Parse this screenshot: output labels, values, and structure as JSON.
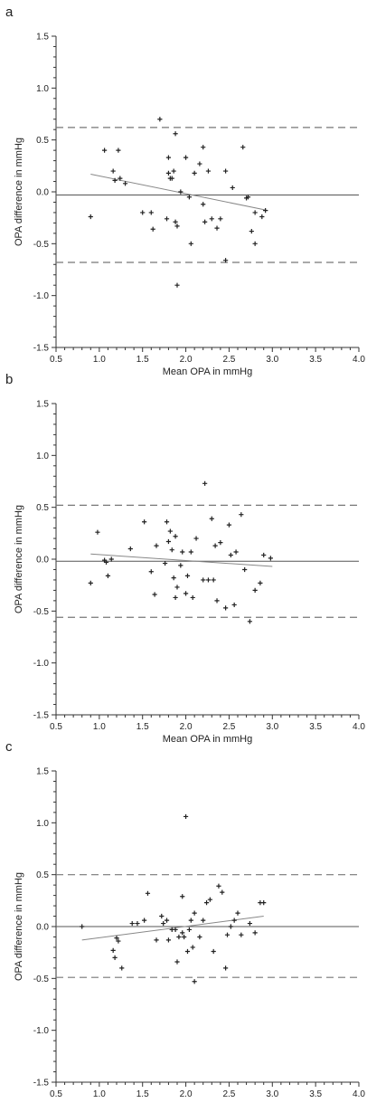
{
  "figure": {
    "colors": {
      "axis": "#333333",
      "points": "#222222",
      "mean_line": "#555555",
      "limit_line": "#777777",
      "regression": "#888888"
    }
  },
  "chart_data": [
    {
      "type": "scatter",
      "panel": "a",
      "xlabel": "Mean OPA in mmHg",
      "ylabel": "OPA difference in mmHg",
      "xlim": [
        0.5,
        4.0
      ],
      "ylim": [
        -1.5,
        1.5
      ],
      "xticks": [
        "0.5",
        "1.0",
        "1.5",
        "2.0",
        "2.5",
        "3.0",
        "3.5",
        "4.0"
      ],
      "yticks": [
        "1.5",
        "1.0",
        "0.5",
        "0.0",
        "-0.5",
        "-1.0",
        "-1.5"
      ],
      "mean_difference": -0.03,
      "limits_of_agreement": [
        0.62,
        -0.68
      ],
      "regression_line": [
        [
          0.9,
          0.17
        ],
        [
          2.95,
          -0.18
        ]
      ],
      "points": [
        [
          0.9,
          -0.24
        ],
        [
          1.06,
          0.4
        ],
        [
          1.16,
          0.2
        ],
        [
          1.18,
          0.11
        ],
        [
          1.22,
          0.4
        ],
        [
          1.24,
          0.13
        ],
        [
          1.3,
          0.08
        ],
        [
          1.5,
          -0.2
        ],
        [
          1.6,
          -0.2
        ],
        [
          1.62,
          -0.36
        ],
        [
          1.7,
          0.7
        ],
        [
          1.78,
          -0.26
        ],
        [
          1.8,
          0.33
        ],
        [
          1.8,
          0.18
        ],
        [
          1.82,
          0.13
        ],
        [
          1.84,
          0.13
        ],
        [
          1.86,
          0.2
        ],
        [
          1.88,
          0.56
        ],
        [
          1.88,
          -0.29
        ],
        [
          1.9,
          -0.33
        ],
        [
          1.9,
          -0.9
        ],
        [
          1.94,
          0.0
        ],
        [
          2.0,
          0.33
        ],
        [
          2.04,
          -0.05
        ],
        [
          2.06,
          -0.5
        ],
        [
          2.1,
          0.18
        ],
        [
          2.16,
          0.27
        ],
        [
          2.2,
          0.43
        ],
        [
          2.2,
          -0.12
        ],
        [
          2.22,
          -0.29
        ],
        [
          2.26,
          0.2
        ],
        [
          2.3,
          -0.26
        ],
        [
          2.36,
          -0.35
        ],
        [
          2.4,
          -0.26
        ],
        [
          2.46,
          0.2
        ],
        [
          2.46,
          -0.66
        ],
        [
          2.54,
          0.04
        ],
        [
          2.66,
          0.43
        ],
        [
          2.7,
          -0.06
        ],
        [
          2.72,
          -0.05
        ],
        [
          2.76,
          -0.38
        ],
        [
          2.8,
          -0.2
        ],
        [
          2.8,
          -0.5
        ],
        [
          2.88,
          -0.24
        ],
        [
          2.92,
          -0.18
        ]
      ]
    },
    {
      "type": "scatter",
      "panel": "b",
      "xlabel": "Mean OPA in mmHg",
      "ylabel": "OPA difference in mmHg",
      "xlim": [
        0.5,
        4.0
      ],
      "ylim": [
        -1.5,
        1.5
      ],
      "xticks": [
        "0.5",
        "1.0",
        "1.5",
        "2.0",
        "2.5",
        "3.0",
        "3.5",
        "4.0"
      ],
      "yticks": [
        "1.5",
        "1.0",
        "0.5",
        "0.0",
        "-0.5",
        "-1.0",
        "-1.5"
      ],
      "mean_difference": -0.02,
      "limits_of_agreement": [
        0.52,
        -0.56
      ],
      "regression_line": [
        [
          0.9,
          0.05
        ],
        [
          3.0,
          -0.07
        ]
      ],
      "points": [
        [
          0.9,
          -0.23
        ],
        [
          0.98,
          0.26
        ],
        [
          1.06,
          -0.01
        ],
        [
          1.08,
          -0.03
        ],
        [
          1.1,
          -0.16
        ],
        [
          1.14,
          0.0
        ],
        [
          1.36,
          0.1
        ],
        [
          1.52,
          0.36
        ],
        [
          1.6,
          -0.12
        ],
        [
          1.64,
          -0.34
        ],
        [
          1.66,
          0.13
        ],
        [
          1.76,
          -0.04
        ],
        [
          1.78,
          0.36
        ],
        [
          1.8,
          0.17
        ],
        [
          1.82,
          0.27
        ],
        [
          1.84,
          0.09
        ],
        [
          1.86,
          -0.18
        ],
        [
          1.88,
          0.22
        ],
        [
          1.88,
          -0.37
        ],
        [
          1.9,
          -0.27
        ],
        [
          1.94,
          -0.06
        ],
        [
          1.96,
          0.07
        ],
        [
          2.0,
          -0.33
        ],
        [
          2.02,
          -0.16
        ],
        [
          2.06,
          0.07
        ],
        [
          2.08,
          -0.37
        ],
        [
          2.12,
          0.2
        ],
        [
          2.2,
          -0.2
        ],
        [
          2.22,
          0.73
        ],
        [
          2.26,
          -0.2
        ],
        [
          2.3,
          0.39
        ],
        [
          2.32,
          -0.2
        ],
        [
          2.34,
          0.13
        ],
        [
          2.36,
          -0.4
        ],
        [
          2.4,
          0.16
        ],
        [
          2.46,
          -0.47
        ],
        [
          2.5,
          0.33
        ],
        [
          2.52,
          0.04
        ],
        [
          2.56,
          -0.44
        ],
        [
          2.58,
          0.07
        ],
        [
          2.64,
          0.43
        ],
        [
          2.68,
          -0.1
        ],
        [
          2.74,
          -0.6
        ],
        [
          2.8,
          -0.3
        ],
        [
          2.86,
          -0.23
        ],
        [
          2.9,
          0.04
        ],
        [
          2.98,
          0.01
        ]
      ]
    },
    {
      "type": "scatter",
      "panel": "c",
      "xlabel": "Mean OPA in mmHg",
      "ylabel": "OPA difference in mmHg",
      "xlim": [
        0.5,
        4.0
      ],
      "ylim": [
        -1.5,
        1.5
      ],
      "xticks": [
        "0.5",
        "1.0",
        "1.5",
        "2.0",
        "2.5",
        "3.0",
        "3.5",
        "4.0"
      ],
      "yticks": [
        "1.5",
        "1.0",
        "0.5",
        "0.0",
        "-0.5",
        "-1.0",
        "-1.5"
      ],
      "mean_difference": 0.0,
      "limits_of_agreement": [
        0.5,
        -0.49
      ],
      "regression_line": [
        [
          0.8,
          -0.13
        ],
        [
          2.9,
          0.1
        ]
      ],
      "points": [
        [
          0.8,
          0.0
        ],
        [
          1.16,
          -0.23
        ],
        [
          1.18,
          -0.3
        ],
        [
          1.2,
          -0.11
        ],
        [
          1.22,
          -0.14
        ],
        [
          1.26,
          -0.4
        ],
        [
          1.38,
          0.03
        ],
        [
          1.44,
          0.03
        ],
        [
          1.52,
          0.06
        ],
        [
          1.56,
          0.32
        ],
        [
          1.66,
          -0.13
        ],
        [
          1.72,
          0.1
        ],
        [
          1.74,
          0.03
        ],
        [
          1.78,
          0.06
        ],
        [
          1.8,
          -0.13
        ],
        [
          1.84,
          -0.03
        ],
        [
          1.88,
          -0.03
        ],
        [
          1.9,
          -0.34
        ],
        [
          1.92,
          -0.1
        ],
        [
          1.96,
          0.29
        ],
        [
          1.96,
          -0.06
        ],
        [
          1.98,
          -0.1
        ],
        [
          2.0,
          1.06
        ],
        [
          2.02,
          -0.24
        ],
        [
          2.04,
          -0.03
        ],
        [
          2.06,
          0.06
        ],
        [
          2.08,
          -0.2
        ],
        [
          2.1,
          0.13
        ],
        [
          2.1,
          -0.53
        ],
        [
          2.16,
          -0.1
        ],
        [
          2.2,
          0.06
        ],
        [
          2.24,
          0.23
        ],
        [
          2.28,
          0.26
        ],
        [
          2.32,
          -0.24
        ],
        [
          2.38,
          0.39
        ],
        [
          2.42,
          0.33
        ],
        [
          2.46,
          -0.4
        ],
        [
          2.48,
          -0.08
        ],
        [
          2.52,
          0.0
        ],
        [
          2.56,
          0.06
        ],
        [
          2.6,
          0.13
        ],
        [
          2.64,
          -0.08
        ],
        [
          2.74,
          0.03
        ],
        [
          2.8,
          -0.06
        ],
        [
          2.86,
          0.23
        ],
        [
          2.9,
          0.23
        ]
      ]
    }
  ]
}
